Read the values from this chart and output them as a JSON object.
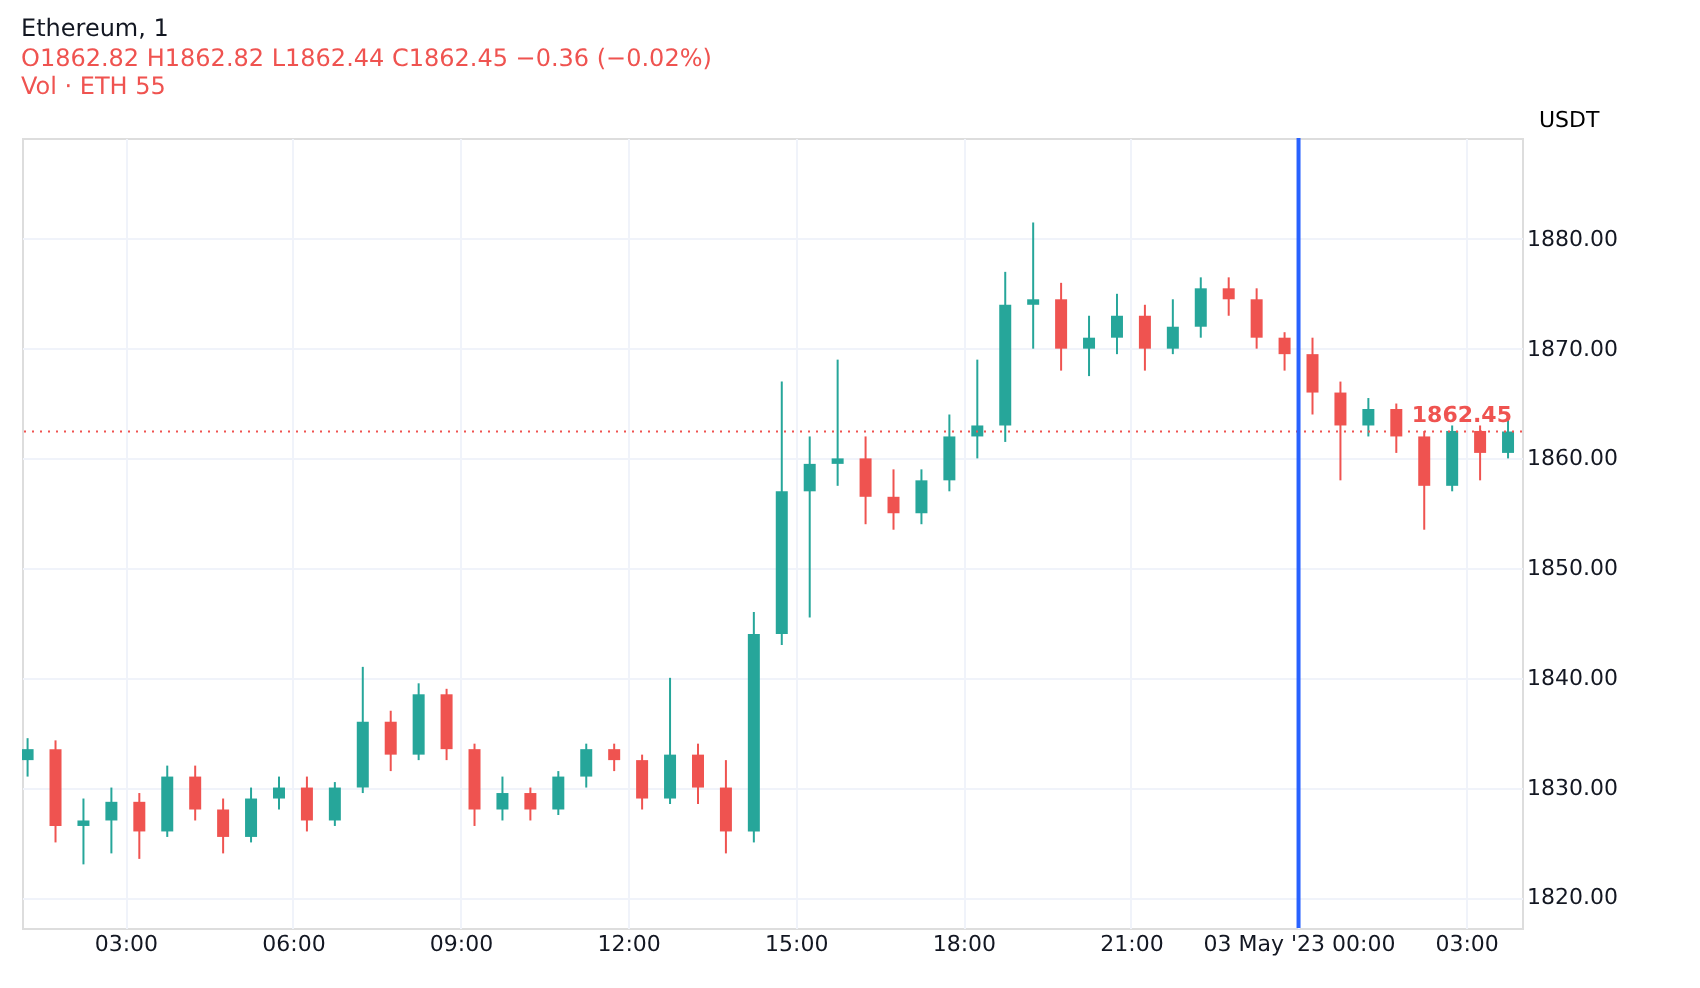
{
  "chart_data": {
    "type": "candlestick",
    "title": "Ethereum, 1",
    "subtitle": "O1862.82  H1862.82  L1862.44  C1862.45  −0.36 (−0.02%)",
    "ylabel": "USDT",
    "annotations": [
      "Vol · ETH 55"
    ],
    "x": [
      "2023-05-02T01:15",
      "2023-05-02T01:45",
      "2023-05-02T02:15",
      "2023-05-02T02:45",
      "2023-05-02T03:15",
      "2023-05-02T03:45",
      "2023-05-02T04:15",
      "2023-05-02T04:45",
      "2023-05-02T05:15",
      "2023-05-02T05:45",
      "2023-05-02T06:15",
      "2023-05-02T06:45",
      "2023-05-02T07:15",
      "2023-05-02T07:45",
      "2023-05-02T08:15",
      "2023-05-02T08:45",
      "2023-05-02T09:15",
      "2023-05-02T09:45",
      "2023-05-02T10:15",
      "2023-05-02T10:45",
      "2023-05-02T11:15",
      "2023-05-02T11:45",
      "2023-05-02T12:15",
      "2023-05-02T12:45",
      "2023-05-02T13:15",
      "2023-05-02T13:45",
      "2023-05-02T14:15",
      "2023-05-02T14:45",
      "2023-05-02T15:15",
      "2023-05-02T15:45",
      "2023-05-02T16:15",
      "2023-05-02T16:45",
      "2023-05-02T17:15",
      "2023-05-02T17:45",
      "2023-05-02T18:15",
      "2023-05-02T18:45",
      "2023-05-02T19:15",
      "2023-05-02T19:45",
      "2023-05-02T20:15",
      "2023-05-02T20:45",
      "2023-05-02T21:15",
      "2023-05-02T21:45",
      "2023-05-02T22:15",
      "2023-05-02T22:45",
      "2023-05-02T23:15",
      "2023-05-02T23:45",
      "2023-05-03T00:15",
      "2023-05-03T00:45",
      "2023-05-03T01:15",
      "2023-05-03T01:45",
      "2023-05-03T02:15",
      "2023-05-03T02:45",
      "2023-05-03T03:15",
      "2023-05-03T03:45"
    ],
    "ohlc": [
      [
        1832.5,
        1834.5,
        1831,
        1833.5
      ],
      [
        1833.5,
        1834.3,
        1825,
        1826.5
      ],
      [
        1826.5,
        1829,
        1823,
        1827
      ],
      [
        1827,
        1830,
        1824,
        1828.7
      ],
      [
        1828.7,
        1829.5,
        1823.5,
        1826
      ],
      [
        1826,
        1832,
        1825.5,
        1831
      ],
      [
        1831,
        1832,
        1827,
        1828
      ],
      [
        1828,
        1829,
        1824,
        1825.5
      ],
      [
        1825.5,
        1830,
        1825,
        1829
      ],
      [
        1829,
        1831,
        1828,
        1830
      ],
      [
        1830,
        1831,
        1826,
        1827
      ],
      [
        1827,
        1830.5,
        1826.5,
        1830
      ],
      [
        1830,
        1841,
        1829.5,
        1836
      ],
      [
        1836,
        1837,
        1831.5,
        1833
      ],
      [
        1833,
        1839.5,
        1832.5,
        1838.5
      ],
      [
        1838.5,
        1839,
        1832.5,
        1833.5
      ],
      [
        1833.5,
        1834,
        1826.5,
        1828
      ],
      [
        1828,
        1831,
        1827,
        1829.5
      ],
      [
        1829.5,
        1830,
        1827,
        1828
      ],
      [
        1828,
        1831.5,
        1827.5,
        1831
      ],
      [
        1831,
        1834,
        1830,
        1833.5
      ],
      [
        1833.5,
        1834,
        1831.5,
        1832.5
      ],
      [
        1832.5,
        1833,
        1828,
        1829
      ],
      [
        1829,
        1840,
        1828.5,
        1833
      ],
      [
        1833,
        1834,
        1828.5,
        1830
      ],
      [
        1830,
        1832.5,
        1824,
        1826
      ],
      [
        1826,
        1846,
        1825,
        1844
      ],
      [
        1844,
        1867,
        1843,
        1857
      ],
      [
        1857,
        1862,
        1845.5,
        1859.5
      ],
      [
        1859.5,
        1869,
        1857.5,
        1860
      ],
      [
        1860,
        1862,
        1854,
        1856.5
      ],
      [
        1856.5,
        1859,
        1853.5,
        1855
      ],
      [
        1855,
        1859,
        1854,
        1858
      ],
      [
        1858,
        1864,
        1857,
        1862
      ],
      [
        1862,
        1869,
        1860,
        1863
      ],
      [
        1863,
        1877,
        1861.5,
        1874
      ],
      [
        1874,
        1881.5,
        1870,
        1874.5
      ],
      [
        1874.5,
        1876,
        1868,
        1870
      ],
      [
        1870,
        1873,
        1867.5,
        1871
      ],
      [
        1871,
        1875,
        1869.5,
        1873
      ],
      [
        1873,
        1874,
        1868,
        1870
      ],
      [
        1870,
        1874.5,
        1869.5,
        1872
      ],
      [
        1872,
        1876.5,
        1871,
        1875.5
      ],
      [
        1875.5,
        1876.5,
        1873,
        1874.5
      ],
      [
        1874.5,
        1875.5,
        1870,
        1871
      ],
      [
        1871,
        1871.5,
        1868,
        1869.5
      ],
      [
        1869.5,
        1871,
        1864,
        1866
      ],
      [
        1866,
        1867,
        1858,
        1863
      ],
      [
        1863,
        1865.5,
        1862,
        1864.5
      ],
      [
        1864.5,
        1865,
        1860.5,
        1862
      ],
      [
        1862,
        1862.5,
        1853.5,
        1857.5
      ],
      [
        1857.5,
        1863,
        1857,
        1862.5
      ],
      [
        1862.5,
        1863,
        1858,
        1860.5
      ],
      [
        1860.5,
        1864,
        1860,
        1862.45
      ]
    ],
    "colors": [
      "#26a69a",
      "#ef5350",
      "#26a69a",
      "#26a69a",
      "#ef5350",
      "#26a69a",
      "#ef5350",
      "#ef5350",
      "#26a69a",
      "#26a69a",
      "#ef5350",
      "#26a69a",
      "#26a69a",
      "#ef5350",
      "#26a69a",
      "#ef5350",
      "#ef5350",
      "#26a69a",
      "#ef5350",
      "#26a69a",
      "#26a69a",
      "#ef5350",
      "#ef5350",
      "#26a69a",
      "#ef5350",
      "#ef5350",
      "#26a69a",
      "#26a69a",
      "#26a69a",
      "#26a69a",
      "#ef5350",
      "#ef5350",
      "#26a69a",
      "#26a69a",
      "#26a69a",
      "#26a69a",
      "#26a69a",
      "#ef5350",
      "#26a69a",
      "#26a69a",
      "#ef5350",
      "#26a69a",
      "#26a69a",
      "#ef5350",
      "#ef5350",
      "#ef5350",
      "#ef5350",
      "#ef5350",
      "#26a69a",
      "#ef5350",
      "#ef5350",
      "#26a69a",
      "#ef5350",
      "#26a69a"
    ],
    "xlim": [
      "2023-05-02T01:09",
      "2023-05-03T04:00"
    ],
    "xticks": [
      {
        "value": "2023-05-02T03:00",
        "label": "03:00"
      },
      {
        "value": "2023-05-02T06:00",
        "label": "06:00"
      },
      {
        "value": "2023-05-02T09:00",
        "label": "09:00"
      },
      {
        "value": "2023-05-02T12:00",
        "label": "12:00"
      },
      {
        "value": "2023-05-02T15:00",
        "label": "15:00"
      },
      {
        "value": "2023-05-02T18:00",
        "label": "18:00"
      },
      {
        "value": "2023-05-02T21:00",
        "label": "21:00"
      },
      {
        "value": "2023-05-03T00:00",
        "label": "03 May '23  00:00"
      },
      {
        "value": "2023-05-03T03:00",
        "label": "03:00"
      }
    ],
    "ylim": [
      1817.2,
      1889.2
    ],
    "yticks": [
      {
        "value": 1820,
        "label": "1820.00"
      },
      {
        "value": 1830,
        "label": "1830.00"
      },
      {
        "value": 1840,
        "label": "1840.00"
      },
      {
        "value": 1850,
        "label": "1850.00"
      },
      {
        "value": 1860,
        "label": "1860.00"
      },
      {
        "value": 1870,
        "label": "1870.00"
      },
      {
        "value": 1880,
        "label": "1880.00"
      }
    ],
    "grid": true,
    "ref_lines": [
      {
        "axis": "y",
        "value": 1862.45,
        "label": "1862.45",
        "color": "#ef5350",
        "line_style": "dotted"
      },
      {
        "axis": "x",
        "value": "2023-05-03T00:00",
        "color": "#2962ff",
        "line_style": "solid"
      }
    ]
  }
}
